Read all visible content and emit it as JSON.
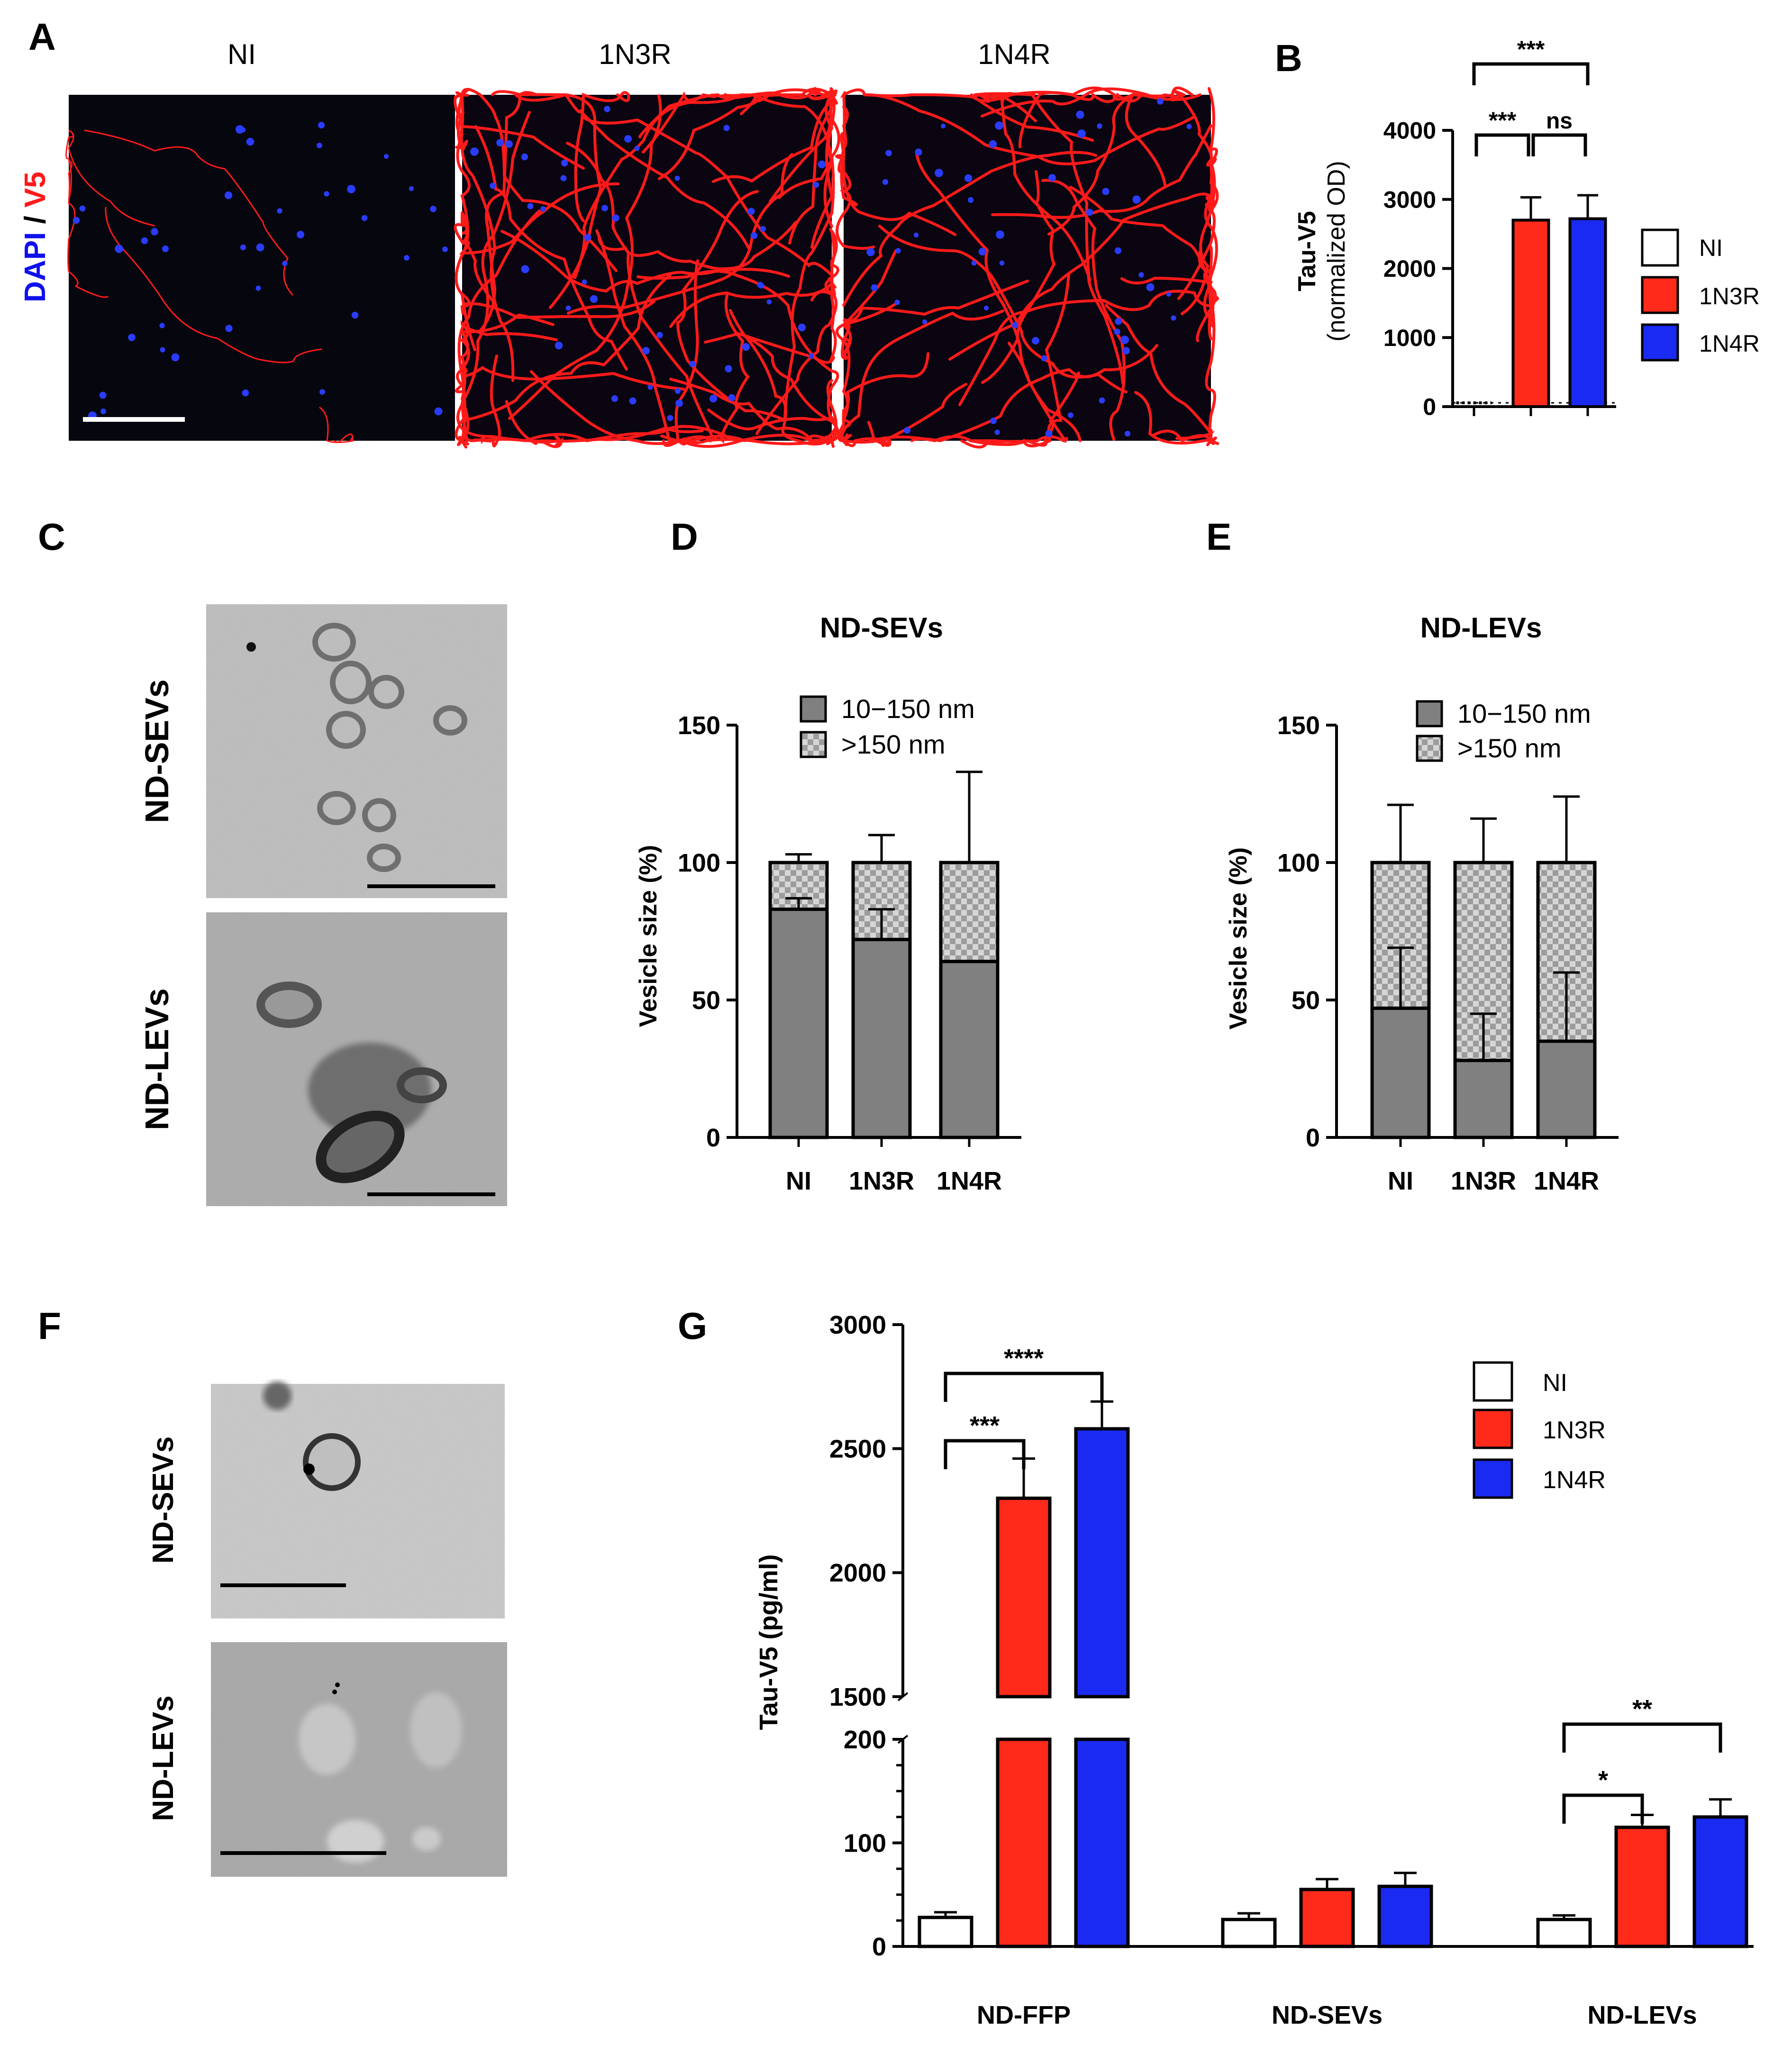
{
  "panel_letters": [
    "A",
    "B",
    "C",
    "D",
    "E",
    "F",
    "G"
  ],
  "panel_a": {
    "columns": [
      "NI",
      "1N3R",
      "1N4R"
    ],
    "stain_dapi": "DAPI",
    "stain_sep": " / ",
    "stain_v5": "V5",
    "colors": {
      "dapi": "#1010ee",
      "v5": "#ff1a1a"
    }
  },
  "panel_c": {
    "rows": [
      "ND-SEVs",
      "ND-LEVs"
    ]
  },
  "panel_f": {
    "rows": [
      "ND-SEVs",
      "ND-LEVs"
    ]
  },
  "colors": {
    "NI": "#ffffff",
    "1N3R": "#ff2a1a",
    "1N4R": "#1a2af0",
    "small": "#808080"
  },
  "chart_data": [
    {
      "panel": "B",
      "type": "bar",
      "categories": [
        "NI",
        "1N3R",
        "1N4R"
      ],
      "values": [
        60,
        2700,
        2720
      ],
      "errors": [
        10,
        330,
        340
      ],
      "ylabel_line1": "Tau-V5",
      "ylabel_line2": "(normalized OD)",
      "yticks": [
        "0",
        "1000",
        "2000",
        "3000",
        "4000"
      ],
      "ylim": [
        0,
        4000
      ],
      "legend": [
        "NI",
        "1N3R",
        "1N4R"
      ],
      "significance": [
        {
          "from": "NI",
          "to": "1N3R",
          "label": "***"
        },
        {
          "from": "1N3R",
          "to": "1N4R",
          "label": "ns"
        },
        {
          "from": "NI",
          "to": "1N4R",
          "label": "***"
        }
      ]
    },
    {
      "panel": "D",
      "type": "bar",
      "stacked": true,
      "title": "ND-SEVs",
      "categories": [
        "NI",
        "1N3R",
        "1N4R"
      ],
      "series": [
        {
          "name": "10−150 nm",
          "values": [
            83,
            72,
            64
          ],
          "errors": [
            4,
            11,
            0
          ]
        },
        {
          "name": ">150 nm",
          "values": [
            17,
            28,
            36
          ],
          "errors": [
            3,
            10,
            33
          ]
        }
      ],
      "ylabel": "Vesicle size (%)",
      "yticks": [
        "0",
        "50",
        "100",
        "150"
      ],
      "ylim": [
        0,
        150
      ]
    },
    {
      "panel": "E",
      "type": "bar",
      "stacked": true,
      "title": "ND-LEVs",
      "categories": [
        "NI",
        "1N3R",
        "1N4R"
      ],
      "series": [
        {
          "name": "10−150 nm",
          "values": [
            47,
            28,
            35
          ],
          "errors": [
            22,
            17,
            25
          ]
        },
        {
          "name": ">150 nm",
          "values": [
            53,
            72,
            65
          ],
          "errors": [
            21,
            16,
            24
          ]
        }
      ],
      "ylabel": "Vesicle size (%)",
      "yticks": [
        "0",
        "50",
        "100",
        "150"
      ],
      "ylim": [
        0,
        150
      ]
    },
    {
      "panel": "G",
      "type": "bar",
      "groups": [
        "ND-FFP",
        "ND-SEVs",
        "ND-LEVs"
      ],
      "categories": [
        "NI",
        "1N3R",
        "1N4R"
      ],
      "series": [
        {
          "name": "NI",
          "values": [
            28,
            26,
            26
          ],
          "errors": [
            5,
            6,
            4
          ]
        },
        {
          "name": "1N3R",
          "values": [
            2300,
            55,
            115
          ],
          "errors": [
            160,
            10,
            12
          ]
        },
        {
          "name": "1N4R",
          "values": [
            2580,
            58,
            125
          ],
          "errors": [
            110,
            13,
            17
          ]
        }
      ],
      "ylabel": "Tau-V5 (pg/ml)",
      "yticks_lower": [
        "0",
        "100",
        "200"
      ],
      "yticks_upper": [
        "1500",
        "2000",
        "2500",
        "3000"
      ],
      "ylim_lower": [
        0,
        200
      ],
      "ylim_upper": [
        1500,
        3000
      ],
      "axis_break": true,
      "legend": [
        "NI",
        "1N3R",
        "1N4R"
      ],
      "significance": [
        {
          "group": "ND-FFP",
          "from": "NI",
          "to": "1N3R",
          "label": "***"
        },
        {
          "group": "ND-FFP",
          "from": "NI",
          "to": "1N4R",
          "label": "****"
        },
        {
          "group": "ND-LEVs",
          "from": "NI",
          "to": "1N3R",
          "label": "*"
        },
        {
          "group": "ND-LEVs",
          "from": "NI",
          "to": "1N4R",
          "label": "**"
        }
      ]
    }
  ]
}
